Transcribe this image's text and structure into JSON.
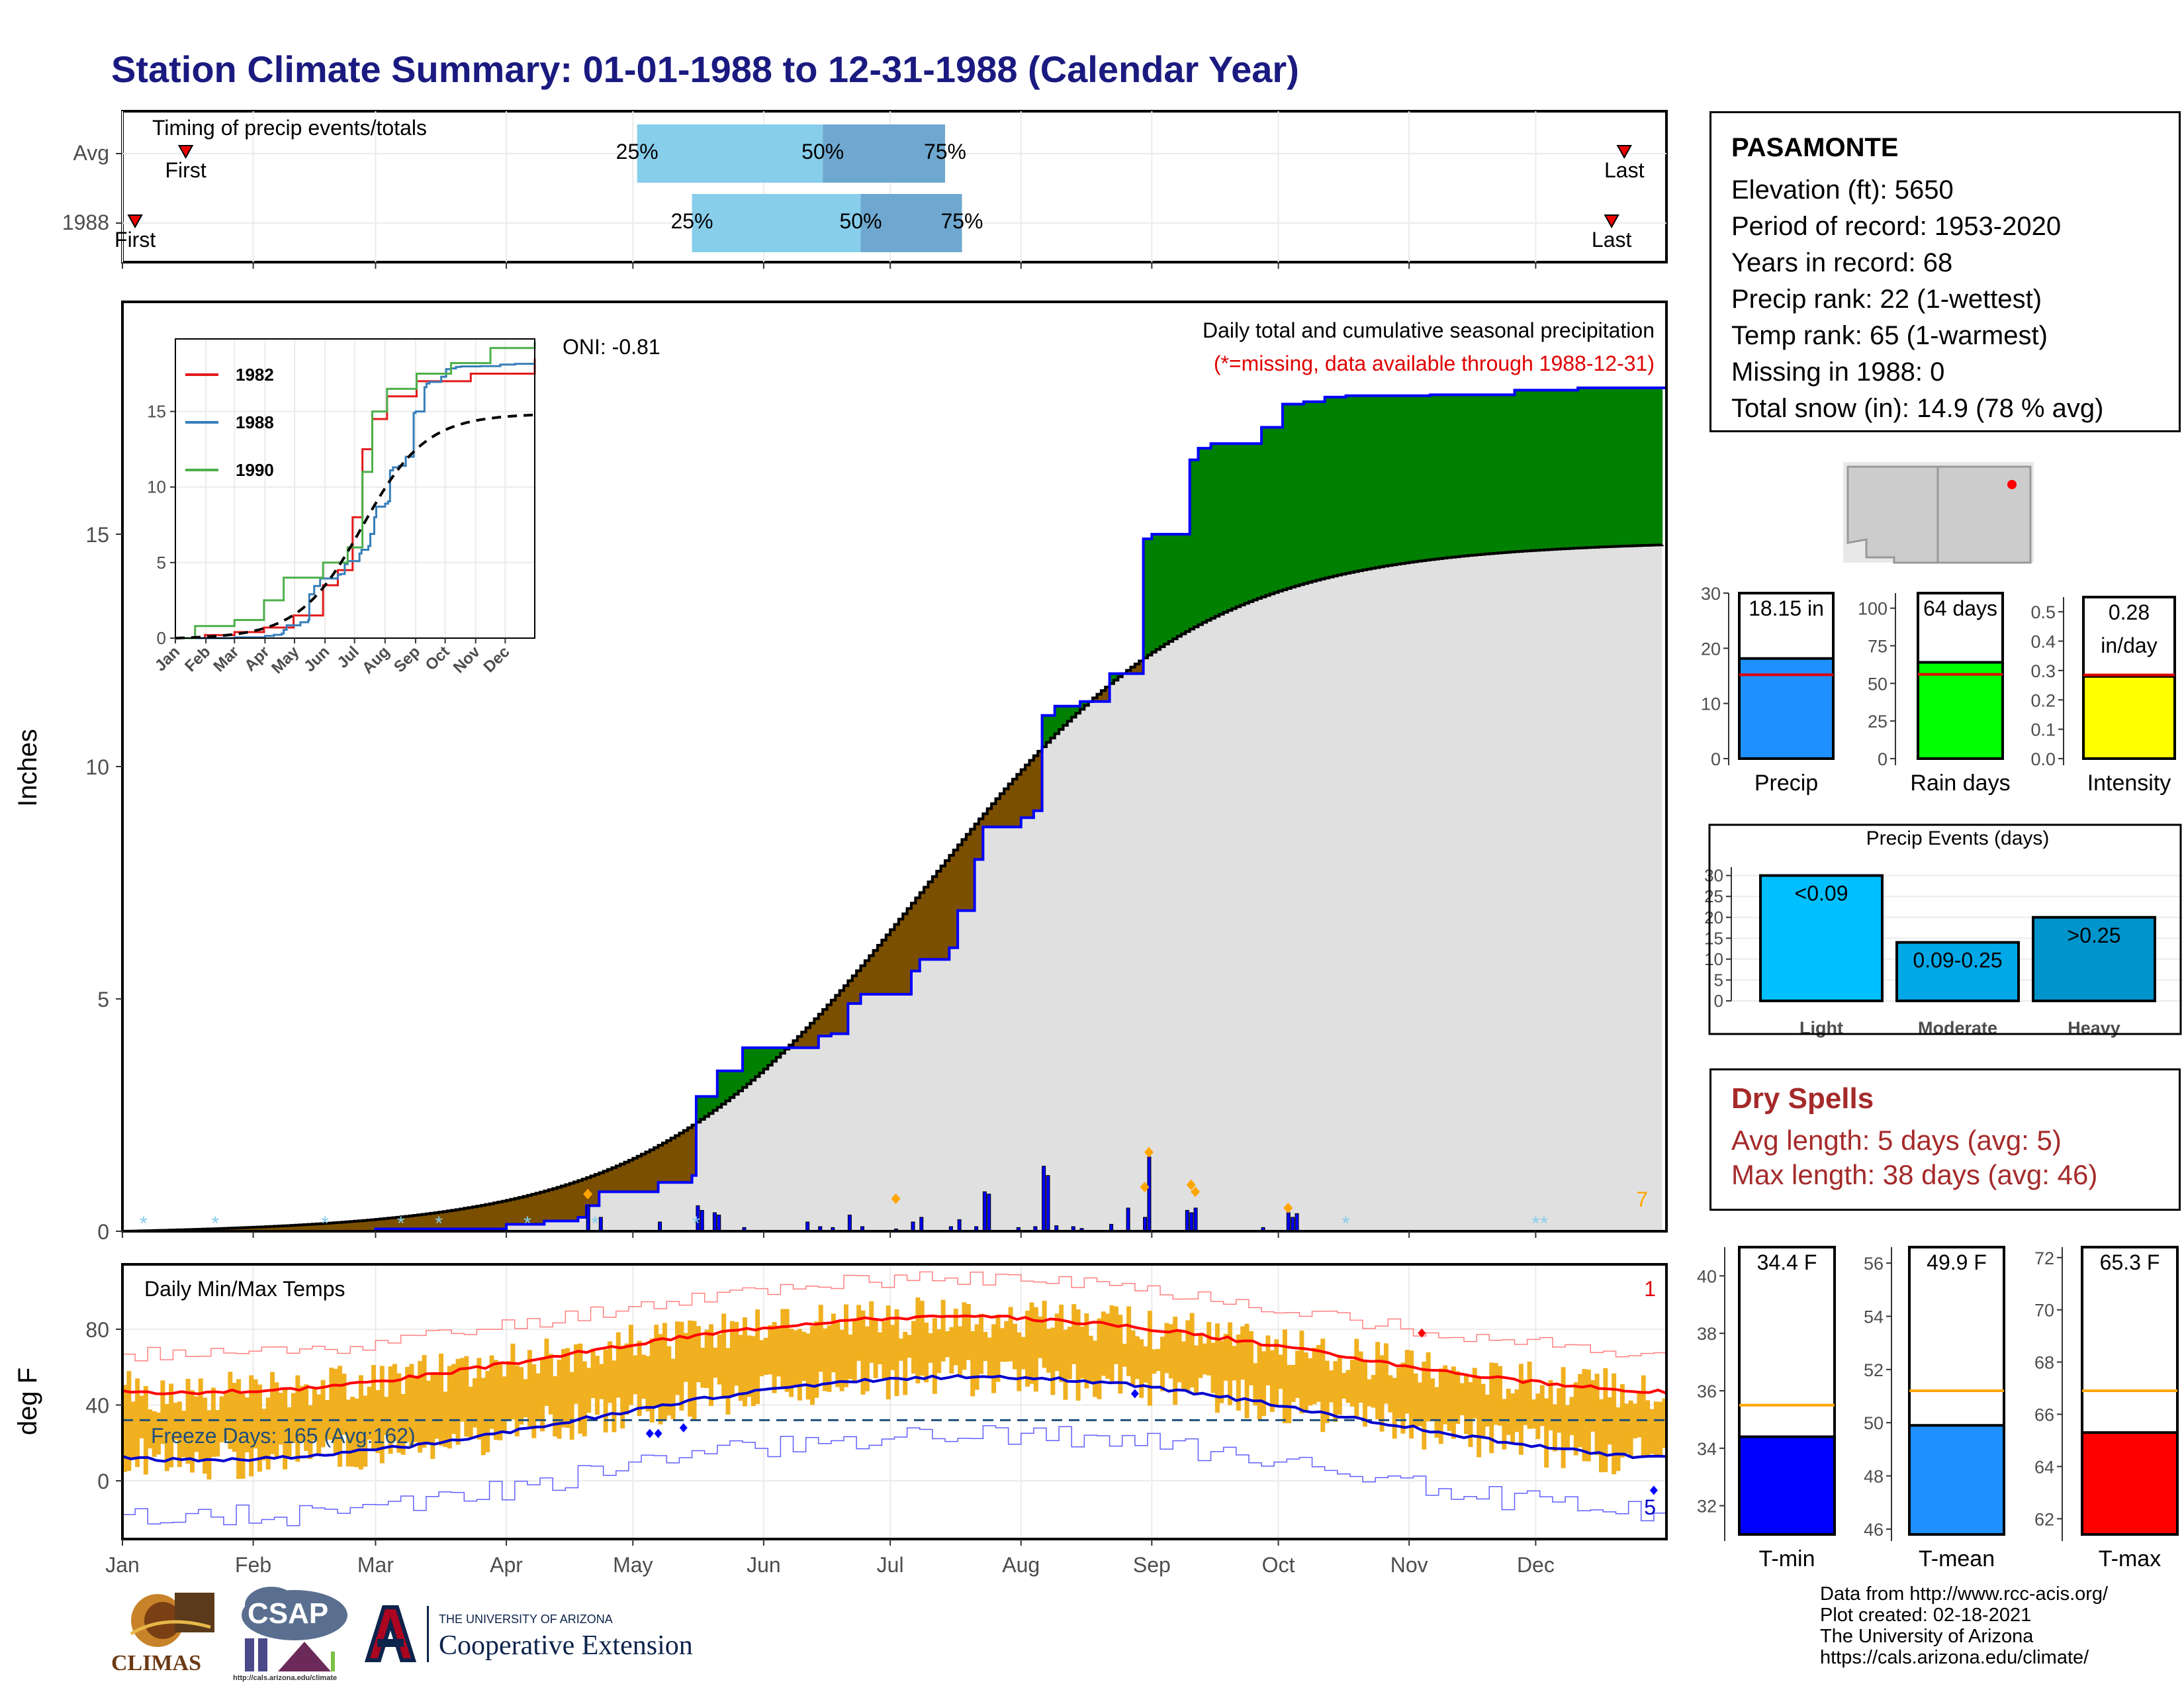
{
  "title": "Station Climate Summary: 01-01-1988 to 12-31-1988 (Calendar Year)",
  "timing_panel": {
    "label": "Timing of precip events/totals",
    "rows": [
      {
        "name": "Avg",
        "first_day": 15,
        "q25": 122,
        "q50": 166,
        "q75": 195,
        "last_day": 356
      },
      {
        "name": "1988",
        "first_day": 3,
        "q25": 135,
        "q50": 175,
        "q75": 199,
        "last_day": 353
      }
    ],
    "first_label": "First",
    "last_label": "Last",
    "q25_label": "25%",
    "q50_label": "50%",
    "q75_label": "75%"
  },
  "precip_panel": {
    "ylabel": "Inches",
    "yticks": [
      0,
      5,
      10,
      15
    ],
    "ymax": 20,
    "title": "Daily total and cumulative seasonal precipitation",
    "subtitle": "(*=missing, data available through 1988-12-31)",
    "corner_value": "7",
    "oni": "ONI: -0.81",
    "colors": {
      "above": "#008000",
      "below": "#7b4f00",
      "normal": "#e0e0e0",
      "cum": "#0000ff"
    }
  },
  "inset": {
    "legend": [
      "1982",
      "1988",
      "1990"
    ],
    "colors": [
      "#e41a1c",
      "#377eb8",
      "#4daf4a"
    ],
    "yticks": [
      0,
      5,
      10,
      15
    ],
    "months": [
      "Jan",
      "Feb",
      "Mar",
      "Apr",
      "May",
      "Jun",
      "Jul",
      "Aug",
      "Sep",
      "Oct",
      "Nov",
      "Dec"
    ]
  },
  "temp_panel": {
    "ylabel": "deg F",
    "title": "Daily Min/Max Temps",
    "yticks": [
      0,
      40,
      80
    ],
    "freeze_label": "Freeze Days: 165 (Avg:162)",
    "corner_top": "1",
    "corner_bottom": "5",
    "months": [
      "Jan",
      "Feb",
      "Mar",
      "Apr",
      "May",
      "Jun",
      "Jul",
      "Aug",
      "Sep",
      "Oct",
      "Nov",
      "Dec"
    ]
  },
  "station": {
    "name": "PASAMONTE",
    "rows": [
      "Elevation (ft): 5650",
      "Period of record: 1953-2020",
      "Years in record: 68",
      "Precip rank: 22 (1-wettest)",
      "Temp rank: 65 (1-warmest)",
      "Missing in 1988: 0",
      "Total snow (in): 14.9 (78 % avg)"
    ]
  },
  "chart_data": [
    {
      "type": "bar",
      "name": "precip-total",
      "categories": [
        "Precip"
      ],
      "values": [
        18.15
      ],
      "avg": 15.2,
      "label": "18.15 in",
      "ylim": [
        0,
        30
      ],
      "yticks": [
        0,
        10,
        20,
        30
      ],
      "color": "#1e90ff"
    },
    {
      "type": "bar",
      "name": "rain-days",
      "categories": [
        "Rain days"
      ],
      "values": [
        64
      ],
      "avg": 56,
      "label": "64 days",
      "ylim": [
        0,
        110
      ],
      "yticks": [
        0,
        25,
        50,
        75,
        100
      ],
      "color": "#00ff00"
    },
    {
      "type": "bar",
      "name": "intensity",
      "categories": [
        "Intensity"
      ],
      "values": [
        0.28
      ],
      "avg": 0.285,
      "label1": "0.28",
      "label2": "in/day",
      "ylim": [
        0,
        0.55
      ],
      "yticks": [
        0.0,
        0.1,
        0.2,
        0.3,
        0.4,
        0.5
      ],
      "color": "#ffff00"
    },
    {
      "type": "bar",
      "name": "precip-events",
      "title": "Precip Events (days)",
      "categories": [
        "Light",
        "Moderate",
        "Heavy"
      ],
      "values": [
        30,
        14,
        20
      ],
      "bar_labels": [
        "<0.09",
        "0.09-0.25",
        ">0.25"
      ],
      "ylim": [
        0,
        32
      ],
      "yticks": [
        0,
        5,
        10,
        15,
        20,
        25,
        30
      ],
      "colors": [
        "#00bfff",
        "#00a8e8",
        "#0094cc"
      ]
    },
    {
      "type": "bar",
      "name": "t-min",
      "categories": [
        "T-min"
      ],
      "values": [
        34.4
      ],
      "avg": 35.5,
      "label": "34.4 F",
      "ylim": [
        31,
        41
      ],
      "yticks": [
        32,
        34,
        36,
        38,
        40
      ],
      "color": "#0000ff"
    },
    {
      "type": "bar",
      "name": "t-mean",
      "categories": [
        "T-mean"
      ],
      "values": [
        49.9
      ],
      "avg": 51.2,
      "label": "49.9 F",
      "ylim": [
        45.8,
        56.6
      ],
      "yticks": [
        46,
        48,
        50,
        52,
        54,
        56
      ],
      "color": "#1e90ff"
    },
    {
      "type": "bar",
      "name": "t-max",
      "categories": [
        "T-max"
      ],
      "values": [
        65.3
      ],
      "avg": 66.9,
      "label": "65.3 F",
      "ylim": [
        61.4,
        72.4
      ],
      "yticks": [
        62,
        64,
        66,
        68,
        70,
        72
      ],
      "color": "#ff0000"
    }
  ],
  "dry_spells": {
    "title": "Dry Spells",
    "avg": "Avg length: 5 days (avg: 5)",
    "max": "Max length: 38 days (avg: 46)"
  },
  "footer": {
    "line1": "Data from http://www.rcc-acis.org/",
    "line2": "Plot created: 02-18-2021",
    "line3": "The University of Arizona",
    "line4": "https://cals.arizona.edu/climate/"
  },
  "logos": {
    "climas": "CLIMAS",
    "csap": "CSAP",
    "csap_url": "http://cals.arizona.edu/climate",
    "ua_small": "THE UNIVERSITY OF ARIZONA",
    "ua_big": "Cooperative Extension"
  }
}
